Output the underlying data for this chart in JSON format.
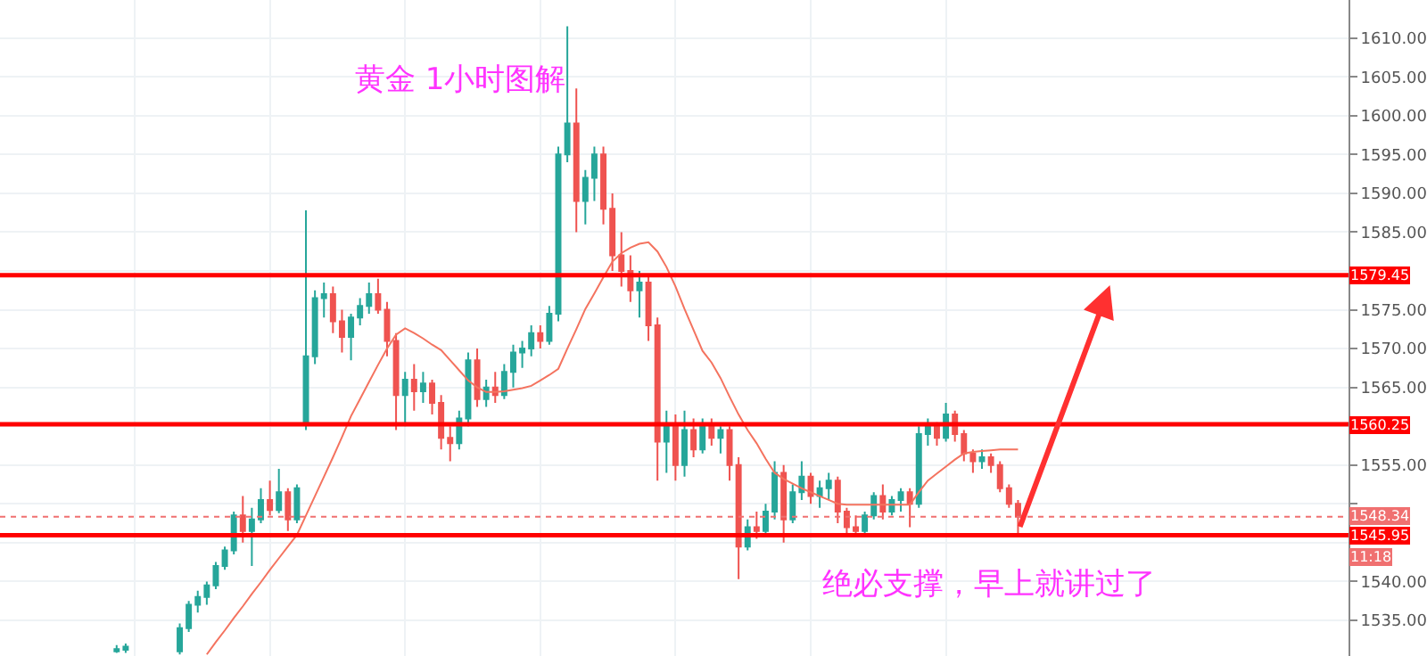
{
  "chart_data": {
    "type": "candlestick",
    "title": "黄金 1小时图解",
    "categories": [
      null,
      null,
      null,
      null,
      null,
      null,
      null,
      null,
      null,
      null,
      null,
      null,
      null,
      null,
      null,
      null,
      null,
      null,
      null,
      null,
      null,
      null,
      null,
      null,
      null,
      null,
      null,
      null,
      null,
      null,
      null,
      null,
      null,
      null,
      null,
      null,
      null,
      null,
      null,
      null,
      null,
      null,
      null,
      null,
      null,
      null,
      null,
      null,
      null,
      null,
      null,
      null,
      null,
      null,
      null,
      null,
      null,
      null,
      null,
      null,
      null,
      null,
      null,
      null,
      null,
      null,
      null,
      null,
      null,
      null,
      null,
      null,
      null,
      null,
      null,
      null,
      null,
      null,
      null,
      null,
      null,
      null,
      null,
      null,
      null,
      null,
      null,
      null,
      null,
      null,
      null,
      null,
      null,
      null,
      null,
      null,
      null,
      null,
      null,
      null,
      null
    ],
    "ohlc": [
      [
        1531,
        1531.8,
        1530.8,
        1531.3
      ],
      [
        1531.2,
        1532,
        1530.8,
        1531.6
      ],
      null,
      null,
      null,
      null,
      null,
      [
        1531,
        1534.6,
        1530.6,
        1534
      ],
      [
        1534,
        1537.5,
        1533.5,
        1537
      ],
      [
        1537,
        1538.8,
        1536,
        1538
      ],
      [
        1538,
        1540,
        1537,
        1539.5
      ],
      [
        1539.5,
        1542.5,
        1539,
        1542
      ],
      [
        1542,
        1544.5,
        1541.5,
        1544
      ],
      [
        1544,
        1549,
        1543.5,
        1548.5
      ],
      [
        1548.5,
        1551,
        1545,
        1546.5
      ],
      [
        1546.5,
        1549.5,
        1542,
        1548
      ],
      [
        1548,
        1552,
        1547.5,
        1550.5
      ],
      [
        1550.5,
        1553,
        1548.5,
        1549.2
      ],
      [
        1549.2,
        1554.5,
        1548.8,
        1551.5
      ],
      [
        1551.5,
        1552,
        1546.5,
        1548
      ],
      [
        1548,
        1552.5,
        1547.5,
        1552
      ],
      [
        1560.5,
        1587.8,
        1559.5,
        1569
      ],
      [
        1569,
        1577.5,
        1568,
        1576.5
      ],
      [
        1576.5,
        1578.5,
        1574,
        1577
      ],
      [
        1577,
        1578,
        1572,
        1573.5
      ],
      [
        1573.5,
        1575,
        1569.5,
        1571.5
      ],
      [
        1571.5,
        1574.5,
        1568.5,
        1574
      ],
      [
        1574,
        1576.5,
        1573,
        1575.5
      ],
      [
        1575.5,
        1578.5,
        1574.5,
        1577
      ],
      [
        1577,
        1579,
        1574.5,
        1575
      ],
      [
        1575,
        1576,
        1569,
        1571
      ],
      [
        1571,
        1572,
        1559.5,
        1564
      ],
      [
        1564,
        1567,
        1560,
        1566
      ],
      [
        1566,
        1568,
        1562,
        1564.5
      ],
      [
        1564.5,
        1567,
        1563,
        1565.5
      ],
      [
        1565.5,
        1566,
        1561.5,
        1563
      ],
      [
        1563,
        1564,
        1557,
        1558.5
      ],
      [
        1558.5,
        1560,
        1555.5,
        1557.8
      ],
      [
        1557.8,
        1562,
        1557,
        1561
      ],
      [
        1561,
        1569.5,
        1560,
        1568.5
      ],
      [
        1568.5,
        1570,
        1562.5,
        1563.5
      ],
      [
        1563.5,
        1566,
        1562.5,
        1565
      ],
      [
        1565,
        1567,
        1563,
        1564
      ],
      [
        1564,
        1568,
        1563.5,
        1567
      ],
      [
        1567,
        1570.5,
        1565,
        1569.5
      ],
      [
        1569.5,
        1571,
        1567.5,
        1570
      ],
      [
        1570,
        1573,
        1569,
        1572
      ],
      [
        1572,
        1573,
        1570,
        1571
      ],
      [
        1571,
        1575.5,
        1570.5,
        1574.5
      ],
      [
        1574.5,
        1596,
        1573.5,
        1595
      ],
      [
        1595,
        1611.5,
        1594,
        1599
      ],
      [
        1599,
        1603.5,
        1585,
        1589
      ],
      [
        1589,
        1593,
        1586,
        1592
      ],
      [
        1592,
        1596,
        1589,
        1595
      ],
      [
        1595,
        1596,
        1586,
        1588
      ],
      [
        1588,
        1590,
        1580,
        1582
      ],
      [
        1582,
        1585,
        1578,
        1580
      ],
      [
        1580,
        1582,
        1576,
        1577.5
      ],
      [
        1577.5,
        1580,
        1574,
        1578.5
      ],
      [
        1578.5,
        1579.5,
        1571,
        1573
      ],
      [
        1573,
        1574,
        1553,
        1558
      ],
      [
        1558,
        1562,
        1554,
        1560
      ],
      [
        1560,
        1561.5,
        1553,
        1555
      ],
      [
        1555,
        1562,
        1553.5,
        1559.5
      ],
      [
        1559.5,
        1561,
        1556,
        1557
      ],
      [
        1557,
        1561,
        1556.5,
        1560
      ],
      [
        1560,
        1561,
        1557.5,
        1558.5
      ],
      [
        1558.5,
        1560,
        1556.5,
        1559.5
      ],
      [
        1559.5,
        1560,
        1553,
        1555
      ],
      [
        1555,
        1556,
        1540.3,
        1544.5
      ],
      [
        1544.5,
        1548,
        1544,
        1547
      ],
      [
        1547,
        1549,
        1545.5,
        1546.5
      ],
      [
        1546.5,
        1550,
        1546,
        1549
      ],
      [
        1549,
        1555.5,
        1548,
        1554
      ],
      [
        1554,
        1555,
        1545,
        1548
      ],
      [
        1548,
        1552.5,
        1547.5,
        1551.5
      ],
      [
        1551.5,
        1555.5,
        1550.5,
        1553.5
      ],
      [
        1553.5,
        1554,
        1550,
        1551
      ],
      [
        1551,
        1553,
        1549.5,
        1552
      ],
      [
        1552,
        1554,
        1550.5,
        1553
      ],
      [
        1553,
        1553.5,
        1547.5,
        1549
      ],
      [
        1549,
        1549.5,
        1545.8,
        1547
      ],
      [
        1547,
        1548.5,
        1545.8,
        1546.5
      ],
      [
        1546.5,
        1549,
        1546,
        1548.5
      ],
      [
        1548.5,
        1551.5,
        1548,
        1551
      ],
      [
        1551,
        1552.5,
        1548,
        1549
      ],
      [
        1549,
        1551,
        1548.5,
        1550.5
      ],
      [
        1550.5,
        1552,
        1549,
        1551.5
      ],
      [
        1551.5,
        1552,
        1547,
        1550
      ],
      [
        1550,
        1560,
        1549.5,
        1559
      ],
      [
        1559,
        1561,
        1557.5,
        1560
      ],
      [
        1560,
        1560.5,
        1557.5,
        1558.5
      ],
      [
        1558.5,
        1563,
        1558,
        1561.5
      ],
      [
        1561.5,
        1562,
        1558,
        1559
      ],
      [
        1559,
        1559.5,
        1555.5,
        1556.5
      ],
      [
        1556.5,
        1557,
        1554,
        1555.5
      ],
      [
        1555.5,
        1557,
        1554.5,
        1556
      ],
      [
        1556,
        1556.5,
        1554,
        1555
      ],
      [
        1555,
        1555.5,
        1551.5,
        1552
      ],
      [
        1552,
        1552.5,
        1549.5,
        1550
      ],
      [
        1550,
        1550.5,
        1545.8,
        1548.34
      ]
    ],
    "colors": [
      "#26a69a",
      "#26a69a",
      null,
      null,
      null,
      null,
      null,
      "#26a69a",
      "#26a69a",
      "#26a69a",
      "#26a69a",
      "#26a69a",
      "#26a69a",
      "#26a69a",
      "#ef5350",
      "#26a69a",
      "#26a69a",
      "#ef5350",
      "#26a69a",
      "#ef5350",
      "#26a69a",
      "#26a69a",
      "#26a69a",
      "#26a69a",
      "#ef5350",
      "#ef5350",
      "#26a69a",
      "#26a69a",
      "#26a69a",
      "#ef5350",
      "#ef5350",
      "#ef5350",
      "#26a69a",
      "#ef5350",
      "#26a69a",
      "#ef5350",
      "#ef5350",
      "#ef5350",
      "#26a69a",
      "#26a69a",
      "#ef5350",
      "#26a69a",
      "#ef5350",
      "#26a69a",
      "#26a69a",
      "#26a69a",
      "#26a69a",
      "#ef5350",
      "#26a69a",
      "#26a69a",
      "#26a69a",
      "#ef5350",
      "#26a69a",
      "#26a69a",
      "#ef5350",
      "#ef5350",
      "#ef5350",
      "#ef5350",
      "#26a69a",
      "#ef5350",
      "#ef5350",
      "#26a69a",
      "#ef5350",
      "#26a69a",
      "#ef5350",
      "#26a69a",
      "#ef5350",
      "#26a69a",
      "#ef5350",
      "#ef5350",
      "#26a69a",
      "#ef5350",
      "#26a69a",
      "#26a69a",
      "#ef5350",
      "#26a69a",
      "#26a69a",
      "#ef5350",
      "#26a69a",
      "#26a69a",
      "#ef5350",
      "#ef5350",
      "#ef5350",
      "#26a69a",
      "#26a69a",
      "#ef5350",
      "#26a69a",
      "#26a69a",
      "#ef5350",
      "#26a69a",
      "#26a69a",
      "#ef5350",
      "#26a69a",
      "#ef5350",
      "#ef5350",
      "#ef5350",
      "#26a69a",
      "#ef5350",
      "#ef5350",
      "#ef5350",
      "#ef5350"
    ],
    "series": [
      {
        "type": "line",
        "color": "#f4735f",
        "values": [
          null,
          null,
          null,
          null,
          null,
          null,
          null,
          null,
          null,
          null,
          1530.6,
          1532.2,
          1533.7,
          1535.3,
          1536.8,
          1538.4,
          1539.9,
          1541.5,
          1543,
          1544.5,
          1546,
          1548.5,
          1551,
          1553.5,
          1556,
          1558.6,
          1561.3,
          1563.5,
          1565.7,
          1567.9,
          1570,
          1571.8,
          1572.6,
          1572,
          1571.3,
          1570.5,
          1569.8,
          1568.5,
          1567.2,
          1565.9,
          1565,
          1564.4,
          1564.4,
          1564.5,
          1564.7,
          1564.9,
          1565.2,
          1565.9,
          1566.6,
          1567.4,
          1570,
          1572.5,
          1575.1,
          1577.1,
          1579.2,
          1581.2,
          1582.3,
          1583,
          1583.5,
          1583.7,
          1582.5,
          1580.5,
          1578,
          1575.1,
          1572.4,
          1569.7,
          1568.2,
          1566.2,
          1563.8,
          1561.5,
          1559.5,
          1557.8,
          1555.8,
          1554,
          1553.2,
          1552.6,
          1552,
          1551.5,
          1551,
          1550.5,
          1550,
          1549.9,
          1549.9,
          1549.9,
          1549.9,
          1549.9,
          1549.9,
          1549.9,
          1549.9,
          1551.5,
          1553,
          1553.9,
          1554.8,
          1555.7,
          1556.5,
          1556.7,
          1556.8,
          1556.9,
          1557,
          1557,
          1557
        ]
      }
    ],
    "ylim": [
      1530.4,
      1614.9
    ],
    "yticks": [
      {
        "value": 1535,
        "label": "1535.00"
      },
      {
        "value": 1540,
        "label": "1540.00"
      },
      {
        "value": 1545,
        "label": null
      },
      {
        "value": 1550,
        "label": null
      },
      {
        "value": 1555,
        "label": "1555.00"
      },
      {
        "value": 1560,
        "label": null
      },
      {
        "value": 1565,
        "label": "1565.00"
      },
      {
        "value": 1570,
        "label": "1570.00"
      },
      {
        "value": 1575,
        "label": "1575.00"
      },
      {
        "value": 1580,
        "label": null
      },
      {
        "value": 1585,
        "label": "1585.00"
      },
      {
        "value": 1590,
        "label": "1590.00"
      },
      {
        "value": 1595,
        "label": "1595.00"
      },
      {
        "value": 1600,
        "label": "1600.00"
      },
      {
        "value": 1605,
        "label": "1605.00"
      },
      {
        "value": 1610,
        "label": "1610.00"
      }
    ],
    "ref_lines": [
      {
        "axis": "y",
        "value": 1579.45,
        "label": "1579.45",
        "color": "#ff0000",
        "line_style": "solid"
      },
      {
        "axis": "y",
        "value": 1560.25,
        "label": "1560.25",
        "color": "#ff0000",
        "line_style": "solid"
      },
      {
        "axis": "y",
        "value": 1548.34,
        "label": "1548.34",
        "color": "#f07070",
        "line_style": "dotted"
      },
      {
        "axis": "y",
        "value": 1545.95,
        "label": "1545.95",
        "color": "#ff0000",
        "line_style": "solid"
      }
    ],
    "annotations": [
      "11:18",
      "绝必支撑，早上就讲过了"
    ],
    "grid": true,
    "tick_labels": "y"
  }
}
